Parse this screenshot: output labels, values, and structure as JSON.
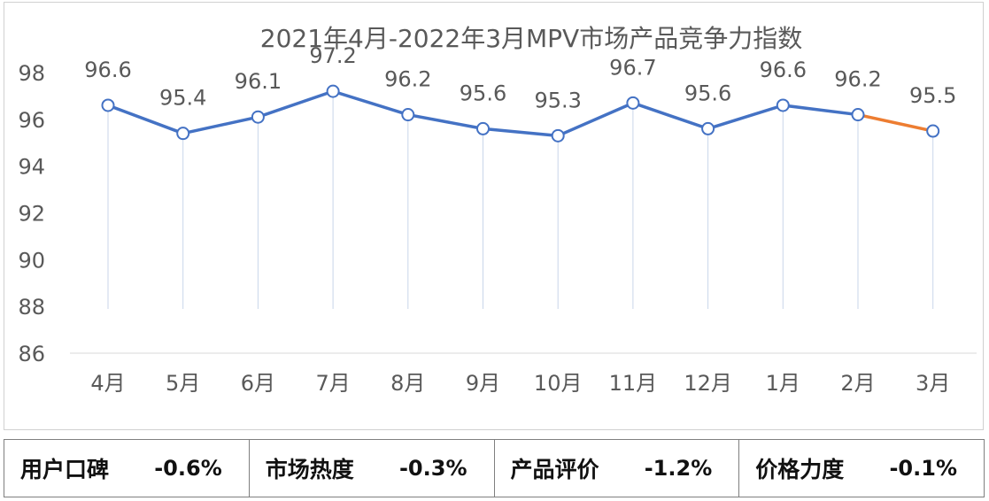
{
  "chart_data": {
    "type": "line",
    "title": "2021年4月-2022年3月MPV市场产品竞争力指数",
    "categories": [
      "4月",
      "5月",
      "6月",
      "7月",
      "8月",
      "9月",
      "10月",
      "11月",
      "12月",
      "1月",
      "2月",
      "3月"
    ],
    "series": [
      {
        "values": [
          96.6,
          95.4,
          96.1,
          97.2,
          96.2,
          95.6,
          95.3,
          96.7,
          95.6,
          96.6,
          96.2,
          95.5
        ],
        "color": "#4472c4",
        "highlight_last_segment_color": "#ed7d31"
      }
    ],
    "data_labels": [
      "96.6",
      "95.4",
      "96.1",
      "97.2",
      "96.2",
      "95.6",
      "95.3",
      "96.7",
      "95.6",
      "96.6",
      "96.2",
      "95.5"
    ],
    "y_ticks": [
      "98",
      "96",
      "94",
      "92",
      "90",
      "88",
      "86"
    ],
    "ylim": [
      86,
      98
    ],
    "xlabel": "",
    "ylabel": "",
    "grid": false,
    "drop_lines": true
  },
  "summary": [
    {
      "label": "用户口碑",
      "value": "-0.6%"
    },
    {
      "label": "市场热度",
      "value": "-0.3%"
    },
    {
      "label": "产品评价",
      "value": "-1.2%"
    },
    {
      "label": "价格力度",
      "value": "-0.1%"
    }
  ],
  "colors": {
    "line": "#4472c4",
    "last_segment": "#ed7d31",
    "drop_line": "#c9d6ea",
    "axis": "#d9d9d9",
    "text": "#595959"
  }
}
